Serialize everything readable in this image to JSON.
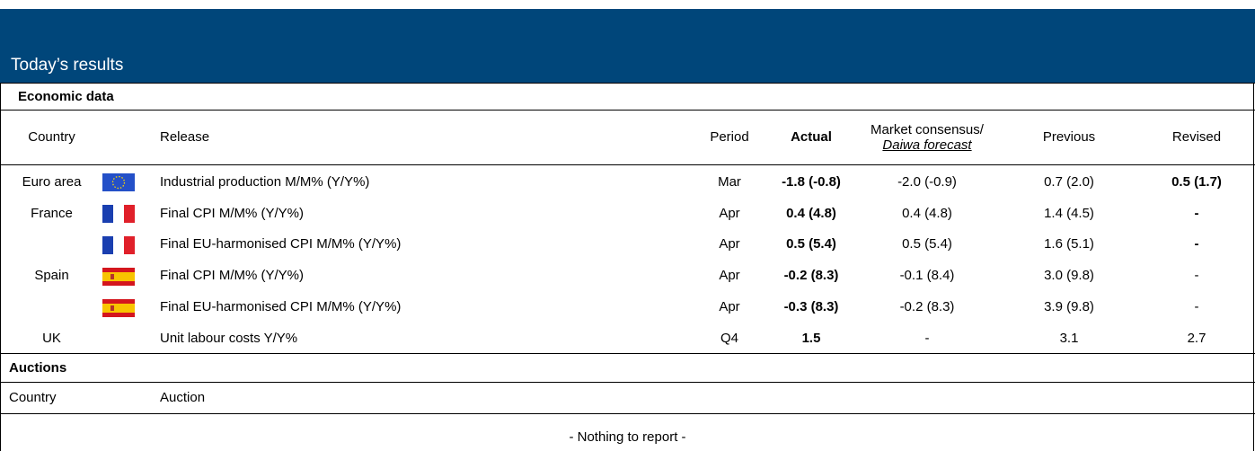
{
  "header": {
    "title": "Today’s results"
  },
  "economic_data": {
    "title": "Economic data",
    "columns": {
      "country": "Country",
      "release": "Release",
      "period": "Period",
      "actual": "Actual",
      "consensus": "Market consensus/",
      "forecast": "Daiwa forecast",
      "previous": "Previous",
      "revised": "Revised"
    },
    "rows": [
      {
        "country": "Euro area",
        "release": "Industrial production M/M% (Y/Y%)",
        "period": "Mar",
        "actual": "-1.8 (-0.8)",
        "consensus": "-2.0 (-0.9)",
        "previous": "0.7 (2.0)",
        "revised": "0.5 (1.7)"
      },
      {
        "country": "France",
        "release": "Final CPI M/M% (Y/Y%)",
        "period": "Apr",
        "actual": "0.4 (4.8)",
        "consensus": "0.4 (4.8)",
        "previous": "1.4 (4.5)",
        "revised": "-"
      },
      {
        "release": "Final EU-harmonised CPI M/M% (Y/Y%)",
        "period": "Apr",
        "actual": "0.5 (5.4)",
        "consensus": "0.5 (5.4)",
        "previous": "1.6 (5.1)",
        "revised": "-"
      },
      {
        "country": "Spain",
        "release": "Final CPI M/M% (Y/Y%)",
        "period": "Apr",
        "actual": "-0.2 (8.3)",
        "consensus": "-0.1 (8.4)",
        "previous": "3.0 (9.8)",
        "revised": "-"
      },
      {
        "release": "Final EU-harmonised CPI M/M% (Y/Y%)",
        "period": "Apr",
        "actual": "-0.3 (8.3)",
        "consensus": "-0.2 (8.3)",
        "previous": "3.9 (9.8)",
        "revised": "-"
      },
      {
        "country": "UK",
        "release": "Unit labour costs Y/Y%",
        "period": "Q4",
        "actual": "1.5",
        "consensus": "-",
        "previous": "3.1",
        "revised": "2.7"
      }
    ]
  },
  "auctions": {
    "title": "Auctions",
    "columns": {
      "country": "Country",
      "auction": "Auction"
    },
    "note": "- Nothing to report -"
  }
}
